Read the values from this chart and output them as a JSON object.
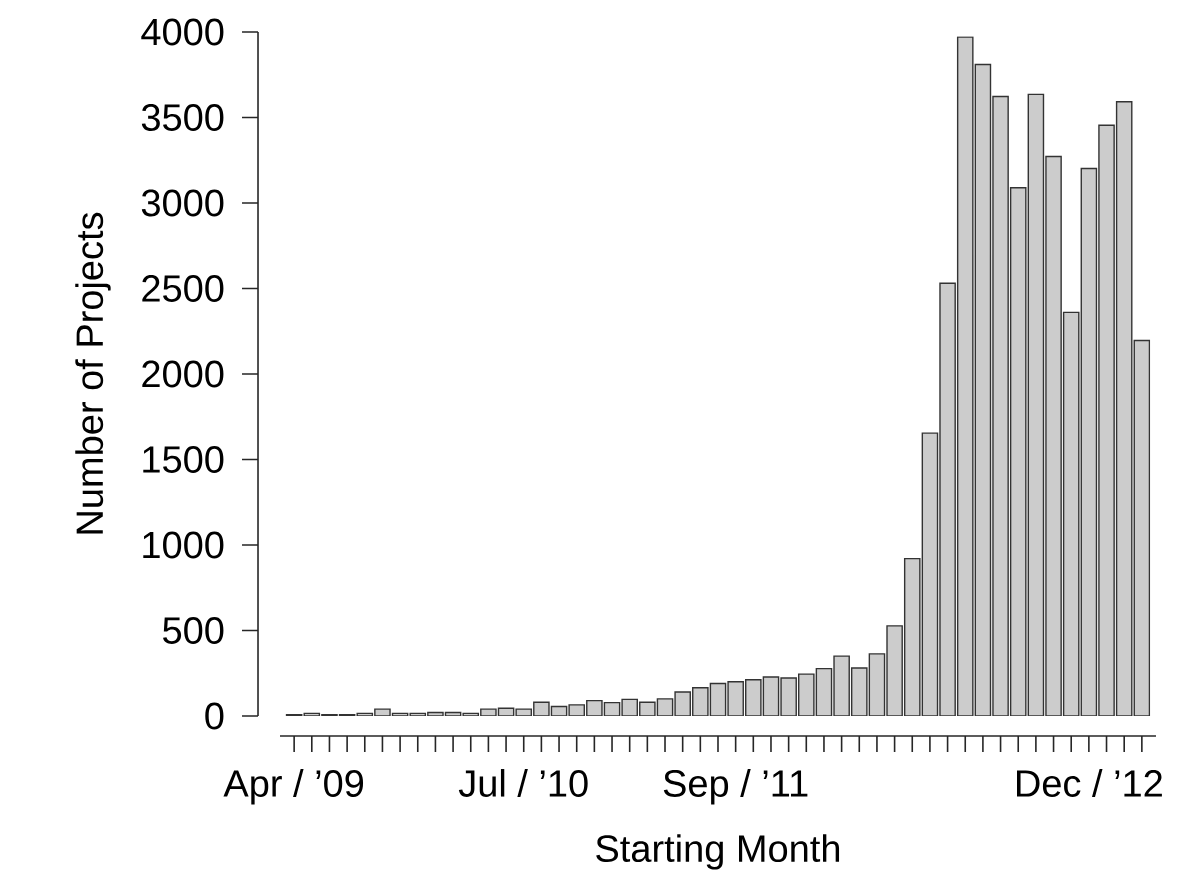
{
  "chart_data": {
    "type": "bar",
    "xlabel": "Starting Month",
    "ylabel": "Number of Projects",
    "categories": [
      "Apr / ’09",
      null,
      null,
      null,
      null,
      null,
      null,
      null,
      null,
      null,
      null,
      null,
      null,
      "Jul / ’10",
      null,
      null,
      null,
      null,
      null,
      null,
      null,
      null,
      null,
      null,
      null,
      "Sep / ’11",
      null,
      null,
      null,
      null,
      null,
      null,
      null,
      null,
      null,
      null,
      null,
      null,
      null,
      null,
      null,
      null,
      null,
      null,
      null,
      "Dec / ’12",
      null,
      null,
      null
    ],
    "values": [
      8,
      15,
      8,
      8,
      15,
      40,
      15,
      15,
      20,
      20,
      15,
      40,
      45,
      40,
      80,
      55,
      65,
      90,
      78,
      97,
      80,
      100,
      140,
      165,
      190,
      200,
      212,
      228,
      222,
      245,
      277,
      350,
      281,
      363,
      527,
      920,
      1654,
      2531,
      3970,
      3810,
      3623,
      3089,
      3635,
      3272,
      2360,
      3202,
      3455,
      3592,
      2196
    ],
    "color": "#cccccc",
    "ylim": [
      0,
      4000
    ],
    "yticks": [
      0,
      500,
      1000,
      1500,
      2000,
      2500,
      3000,
      3500,
      4000
    ]
  }
}
